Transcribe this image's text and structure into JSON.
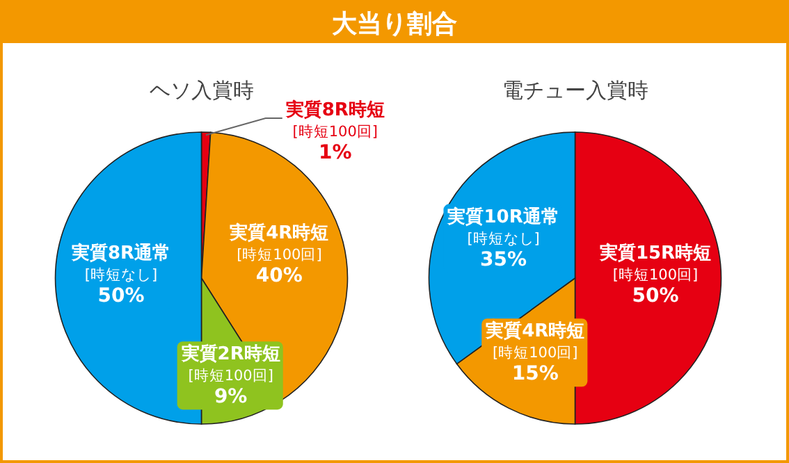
{
  "chart_data": [
    {
      "type": "other",
      "title": "大当り割合"
    },
    {
      "type": "pie",
      "title": "ヘソ入賞時",
      "categories": [
        "実質8R時短 [時短100回]",
        "実質4R時短 [時短100回]",
        "実質2R時短 [時短100回]",
        "実質8R通常 [時短なし]"
      ],
      "values": [
        1,
        40,
        9,
        50
      ],
      "value_labels": [
        "1%",
        "40%",
        "9%",
        "50%"
      ],
      "colors": [
        "#e60012",
        "#f39800",
        "#8fc31f",
        "#00a0e9"
      ]
    },
    {
      "type": "pie",
      "title": "電チュー入賞時",
      "categories": [
        "実質15R時短 [時短100回]",
        "実質4R時短 [時短100回]",
        "実質10R通常 [時短なし]"
      ],
      "values": [
        50,
        15,
        35
      ],
      "value_labels": [
        "50%",
        "15%",
        "35%"
      ],
      "colors": [
        "#e60012",
        "#f39800",
        "#00a0e9"
      ]
    }
  ]
}
